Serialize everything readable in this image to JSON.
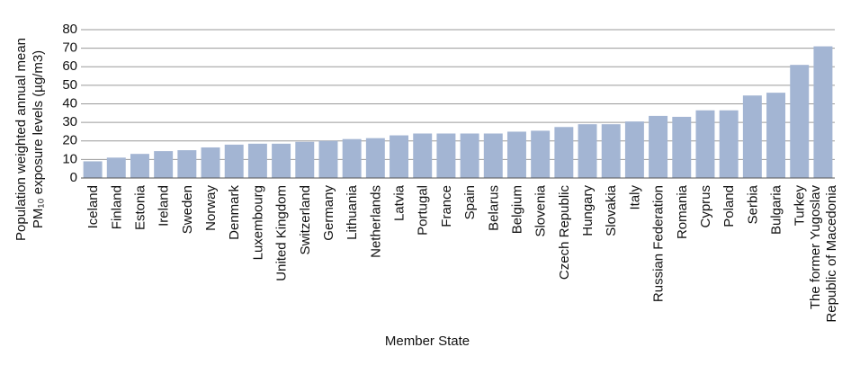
{
  "chart_data": {
    "type": "bar",
    "y_label": [
      "Population weighted annual mean",
      "PM₁₀ exposure levels (µg/m3)"
    ],
    "x_label": "Member State",
    "categories": [
      "Iceland",
      "Finland",
      "Estonia",
      "Ireland",
      "Sweden",
      "Norway",
      "Denmark",
      "Luxembourg",
      "United Kingdom",
      "Switzerland",
      "Germany",
      "Lithuania",
      "Netherlands",
      "Latvia",
      "Portugal",
      "France",
      "Spain",
      "Belarus",
      "Belgium",
      "Slovenia",
      "Czech Republic",
      "Hungary",
      "Slovakia",
      "Italy",
      "Russian Federation",
      "Romania",
      "Cyprus",
      "Poland",
      "Serbia",
      "Bulgaria",
      "Turkey",
      "The former Yugoslav Republic of Macedonia"
    ],
    "values": [
      9,
      11,
      13,
      14.5,
      15,
      16.5,
      18,
      18.5,
      18.5,
      19.5,
      20,
      21,
      21.5,
      23,
      24,
      24,
      24,
      24,
      25,
      25.5,
      27.5,
      29,
      29,
      30.5,
      33.5,
      33,
      36.5,
      36.5,
      44.5,
      46,
      61,
      71
    ],
    "color": "#a3b5d3",
    "ylim": [
      0,
      80
    ],
    "yticks": [
      0,
      10,
      20,
      30,
      40,
      50,
      60,
      70,
      80
    ],
    "grid": true
  }
}
